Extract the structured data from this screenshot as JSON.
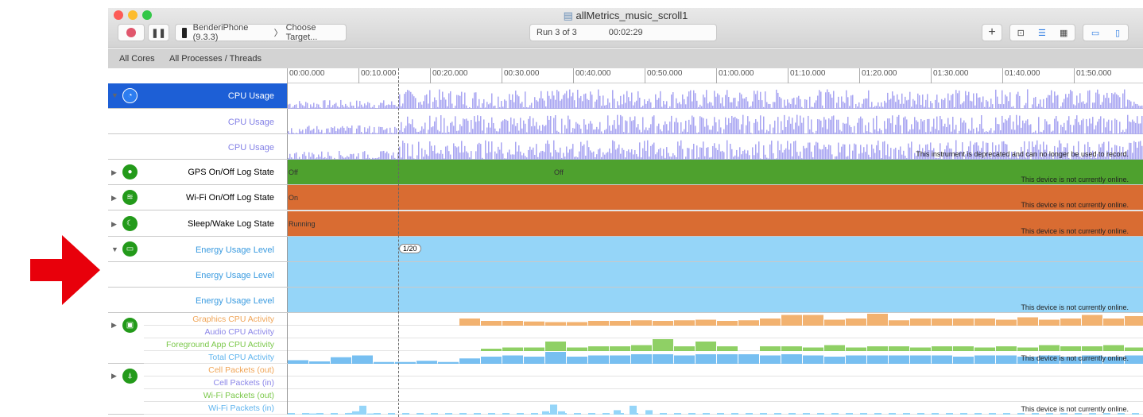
{
  "window": {
    "title": "allMetrics_music_scroll1",
    "target_device": "BenderiPhone (9.3.3)",
    "choose_target": "Choose Target...",
    "run": "Run 3 of 3",
    "elapsed": "00:02:29"
  },
  "filters": {
    "cores": "All Cores",
    "processes": "All Processes / Threads"
  },
  "ruler": [
    "00:00.000",
    "00:10.000",
    "00:20.000",
    "00:30.000",
    "00:40.000",
    "00:50.000",
    "01:00.000",
    "01:10.000",
    "01:20.000",
    "01:30.000",
    "01:40.000",
    "01:50.000"
  ],
  "inspection_marker": "1/20",
  "tracks": {
    "cpu": {
      "label": "CPU Usage",
      "sub": [
        "CPU Usage",
        "CPU Usage"
      ],
      "msg": "This instrument is deprecated and can no longer be used to record.",
      "color": "#a9a6f2"
    },
    "gps": {
      "label": "GPS On/Off Log State",
      "state": "Off",
      "state2": "Off",
      "msg": "This device is not currently online.",
      "color": "#4ea12e"
    },
    "wifi": {
      "label": "Wi-Fi On/Off Log State",
      "state": "On",
      "msg": "This device is not currently online.",
      "color": "#d96c32"
    },
    "sleep": {
      "label": "Sleep/Wake Log State",
      "state": "Running",
      "msg": "This device is not currently online.",
      "color": "#d96c32"
    },
    "energy": {
      "label": "Energy Usage Level",
      "sub": [
        "Energy Usage Level",
        "Energy Usage Level"
      ],
      "msg": "This device is not currently online.",
      "color": "#95d5f8"
    },
    "activity": {
      "labels": [
        "Graphics CPU Activity",
        "Audio CPU Activity",
        "Foreground App CPU Activity",
        "Total CPU Activity"
      ],
      "colors": [
        "#f0a557",
        "#8b86e8",
        "#7bc84a",
        "#5fb4ee"
      ],
      "msg": "This device is not currently online.",
      "graphics": [
        0,
        0,
        0,
        0,
        0,
        0,
        0,
        0,
        0.6,
        0.4,
        0.4,
        0.35,
        0.3,
        0.3,
        0.4,
        0.4,
        0.45,
        0.4,
        0.45,
        0.5,
        0.4,
        0.45,
        0.6,
        0.9,
        0.9,
        0.5,
        0.6,
        1.0,
        0.45,
        0.6,
        0.6,
        0.6,
        0.6,
        0.5,
        0.7,
        0.5,
        0.6,
        0.9,
        0.6,
        0.8
      ],
      "foreground": [
        0,
        0,
        0,
        0,
        0,
        0,
        0,
        0,
        0,
        0.2,
        0.3,
        0.3,
        0.8,
        0.3,
        0.4,
        0.4,
        0.5,
        1.0,
        0.4,
        0.8,
        0.4,
        0,
        0.4,
        0.4,
        0.3,
        0.5,
        0.3,
        0.4,
        0.4,
        0.3,
        0.4,
        0.4,
        0.3,
        0.4,
        0.3,
        0.5,
        0.4,
        0.4,
        0.5,
        0.3
      ],
      "total": [
        0.3,
        0.2,
        0.55,
        0.7,
        0.15,
        0.15,
        0.25,
        0.15,
        0.45,
        0.6,
        0.7,
        0.6,
        1.0,
        0.6,
        0.7,
        0.7,
        0.8,
        0.8,
        0.7,
        0.8,
        0.8,
        0.8,
        0.7,
        0.8,
        0.7,
        0.6,
        0.7,
        0.7,
        0.7,
        0.7,
        0.7,
        0.6,
        0.7,
        0.7,
        0.6,
        0.7,
        0.6,
        0.7,
        0.6,
        0.7
      ]
    },
    "packets": {
      "labels": [
        "Cell Packets (out)",
        "Cell Packets (in)",
        "Wi-Fi Packets (out)",
        "Wi-Fi Packets (in)"
      ],
      "colors": [
        "#f0a557",
        "#8b86e8",
        "#7bc84a",
        "#5fb4ee"
      ],
      "msg": "This device is not currently online."
    }
  }
}
